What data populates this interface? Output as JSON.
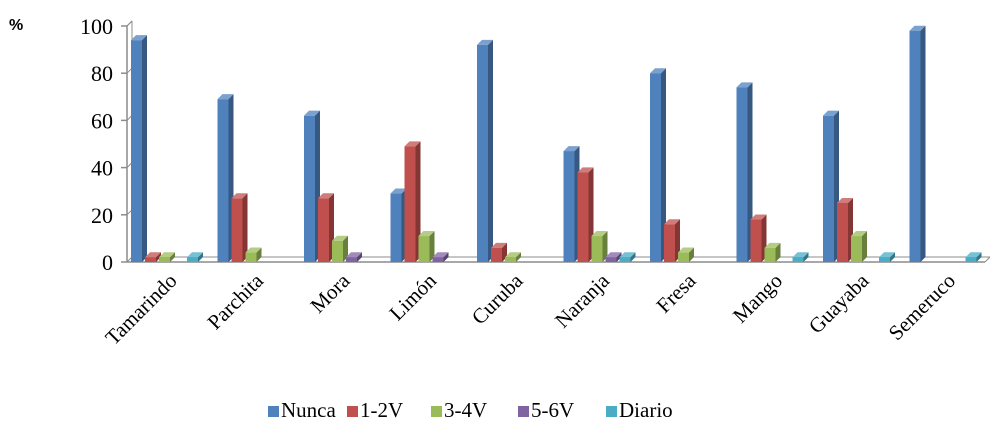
{
  "chart_data": {
    "type": "bar",
    "title": "",
    "xlabel": "",
    "ylabel": "%",
    "ylim": [
      0,
      100
    ],
    "yticks": [
      0,
      20,
      40,
      60,
      80,
      100
    ],
    "grid": false,
    "legend_position": "bottom",
    "categories": [
      "Tamarindo",
      "Parchita",
      "Mora",
      "Limón",
      "Curuba",
      "Naranja",
      "Fresa",
      "Mango",
      "Guayaba",
      "Semeruco"
    ],
    "series": [
      {
        "name": "Nunca",
        "color": "#4F81BD",
        "values": [
          94,
          69,
          62,
          29,
          92,
          47,
          80,
          74,
          62,
          98
        ]
      },
      {
        "name": "1-2V",
        "color": "#C0504D",
        "values": [
          2,
          27,
          27,
          49,
          6,
          38,
          16,
          18,
          25,
          0
        ]
      },
      {
        "name": "3-4V",
        "color": "#9BBB59",
        "values": [
          2,
          4,
          9,
          11,
          2,
          11,
          4,
          6,
          11,
          0
        ]
      },
      {
        "name": "5-6V",
        "color": "#8064A2",
        "values": [
          0,
          0,
          2,
          2,
          0,
          2,
          0,
          0,
          0,
          0
        ]
      },
      {
        "name": "Diario",
        "color": "#4BACC6",
        "values": [
          2,
          0,
          0,
          0,
          0,
          2,
          0,
          2,
          2,
          2
        ]
      }
    ]
  }
}
